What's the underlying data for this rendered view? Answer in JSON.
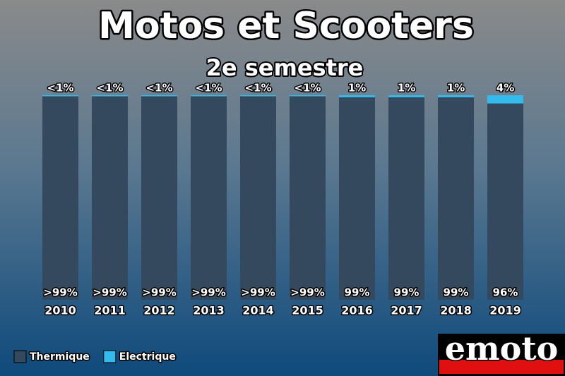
{
  "chart_data": {
    "type": "bar",
    "stacked": true,
    "title": "Motos et Scooters",
    "subtitle": "2e semestre",
    "categories": [
      "2010",
      "2011",
      "2012",
      "2013",
      "2014",
      "2015",
      "2016",
      "2017",
      "2018",
      "2019"
    ],
    "series": [
      {
        "name": "Thermique",
        "color": "#34495e",
        "values": [
          99.5,
          99.5,
          99.5,
          99.5,
          99.5,
          99.5,
          99,
          99,
          99,
          96
        ],
        "value_labels": [
          ">99%",
          ">99%",
          ">99%",
          ">99%",
          ">99%",
          ">99%",
          "99%",
          "99%",
          "99%",
          "96%"
        ]
      },
      {
        "name": "Electrique",
        "color": "#33bbee",
        "values": [
          0.5,
          0.5,
          0.5,
          0.5,
          0.5,
          0.5,
          1,
          1,
          1,
          4
        ],
        "value_labels": [
          "<1%",
          "<1%",
          "<1%",
          "<1%",
          "<1%",
          "<1%",
          "1%",
          "1%",
          "1%",
          "4%"
        ]
      }
    ],
    "legend": "bottom-left"
  },
  "logo": {
    "text": "emoto"
  }
}
